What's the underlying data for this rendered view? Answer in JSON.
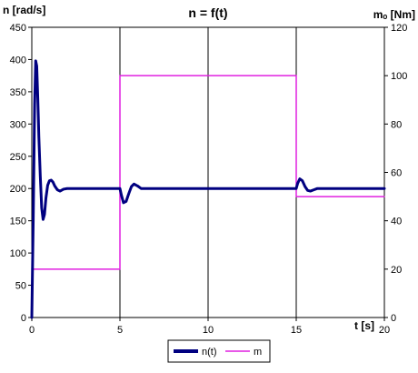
{
  "chart_data": {
    "type": "line",
    "title": "n = f(t)",
    "xlabel": "t [s]",
    "ylabel_left": "n [rad/s]",
    "ylabel_right": "mₒ [Nm]",
    "xlim": [
      0,
      20
    ],
    "ylim_left": [
      0,
      450
    ],
    "ylim_right": [
      0,
      120
    ],
    "x_ticks": [
      0,
      5,
      10,
      15,
      20
    ],
    "y_ticks_left": [
      0,
      50,
      100,
      150,
      200,
      250,
      300,
      350,
      400,
      450
    ],
    "y_ticks_right": [
      0,
      20,
      40,
      60,
      80,
      100,
      120
    ],
    "grid": "vertical lines at x = 5, 10, 15",
    "legend_position": "bottom-center",
    "series": [
      {
        "name": "n(t)",
        "axis": "left",
        "color": "#000080",
        "x": [
          0,
          0.08,
          0.16,
          0.22,
          0.28,
          0.34,
          0.4,
          0.48,
          0.56,
          0.64,
          0.72,
          0.8,
          0.9,
          1.0,
          1.1,
          1.2,
          1.3,
          1.45,
          1.6,
          1.8,
          2.0,
          2.5,
          5.0,
          5.08,
          5.2,
          5.35,
          5.5,
          5.65,
          5.8,
          6.0,
          6.2,
          6.5,
          7.0,
          15.0,
          15.08,
          15.2,
          15.35,
          15.5,
          15.65,
          15.8,
          16.0,
          16.2,
          16.5,
          17.0,
          20.0
        ],
        "y": [
          0,
          150,
          330,
          398,
          390,
          340,
          280,
          220,
          170,
          152,
          160,
          185,
          205,
          212,
          213,
          210,
          204,
          198,
          196,
          199,
          200,
          200,
          200,
          190,
          178,
          180,
          192,
          203,
          207,
          204,
          200,
          200,
          200,
          200,
          208,
          215,
          212,
          203,
          197,
          196,
          198,
          200,
          200,
          200,
          200
        ]
      },
      {
        "name": "m",
        "axis": "right",
        "color": "#e020e0",
        "x": [
          0,
          5,
          5,
          15,
          15,
          20
        ],
        "y": [
          20,
          20,
          100,
          100,
          50,
          50
        ]
      }
    ]
  }
}
